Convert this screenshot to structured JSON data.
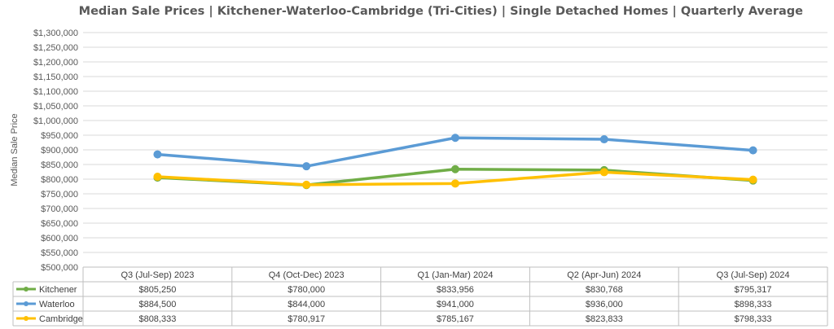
{
  "chart_data": {
    "type": "line",
    "title": "Median Sale Prices | Kitchener-Waterloo-Cambridge (Tri-Cities) | Single Detached Homes | Quarterly Average",
    "ylabel": "Median Sale Price",
    "xlabel": "",
    "ylim": [
      500000,
      1300000
    ],
    "ytick_step": 50000,
    "y_ticks": [
      "$500,000",
      "$550,000",
      "$600,000",
      "$650,000",
      "$700,000",
      "$750,000",
      "$800,000",
      "$850,000",
      "$900,000",
      "$950,000",
      "$1,000,000",
      "$1,050,000",
      "$1,100,000",
      "$1,150,000",
      "$1,200,000",
      "$1,250,000",
      "$1,300,000"
    ],
    "grid": true,
    "legend": "data-table",
    "categories": [
      "Q3 (Jul-Sep) 2023",
      "Q4 (Oct-Dec) 2023",
      "Q1 (Jan-Mar) 2024",
      "Q2 (Apr-Jun) 2024",
      "Q3 (Jul-Sep) 2024"
    ],
    "series": [
      {
        "name": "Kitchener",
        "color": "#70AD47",
        "values": [
          805250,
          780000,
          833956,
          830768,
          795317
        ],
        "labels": [
          "$805,250",
          "$780,000",
          "$833,956",
          "$830,768",
          "$795,317"
        ]
      },
      {
        "name": "Waterloo",
        "color": "#5B9BD5",
        "values": [
          884500,
          844000,
          941000,
          936000,
          898333
        ],
        "labels": [
          "$884,500",
          "$844,000",
          "$941,000",
          "$936,000",
          "$898,333"
        ]
      },
      {
        "name": "Cambridge",
        "color": "#FFC000",
        "values": [
          808333,
          780917,
          785167,
          823833,
          798333
        ],
        "labels": [
          "$808,333",
          "$780,917",
          "$785,167",
          "$823,833",
          "$798,333"
        ]
      }
    ]
  }
}
